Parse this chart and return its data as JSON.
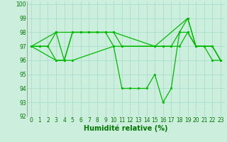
{
  "lines": [
    {
      "x": [
        0,
        1,
        2,
        3,
        4,
        5,
        6,
        7,
        8,
        9,
        10,
        11,
        12,
        13,
        14,
        15,
        16,
        17,
        18,
        19,
        20,
        21,
        22,
        23
      ],
      "y": [
        97,
        97,
        97,
        98,
        96,
        98,
        98,
        98,
        98,
        98,
        97,
        94,
        94,
        94,
        94,
        95,
        93,
        94,
        98,
        99,
        97,
        97,
        97,
        96
      ],
      "color": "#00bb00",
      "marker": "s",
      "markersize": 2.0,
      "linewidth": 0.9
    },
    {
      "x": [
        0,
        1,
        2,
        3,
        4,
        5,
        6,
        7,
        8,
        9,
        10,
        11,
        15,
        16,
        17,
        18,
        19,
        20,
        21,
        22,
        23
      ],
      "y": [
        97,
        97,
        97,
        96,
        96,
        98,
        98,
        98,
        98,
        98,
        98,
        97,
        97,
        97,
        97,
        98,
        98,
        97,
        97,
        96,
        96
      ],
      "color": "#00bb00",
      "marker": "s",
      "markersize": 2.0,
      "linewidth": 0.9
    },
    {
      "x": [
        0,
        3,
        4,
        5,
        10,
        11,
        15,
        16,
        17,
        18,
        19,
        20,
        21,
        22,
        23
      ],
      "y": [
        97,
        96,
        96,
        96,
        97,
        97,
        97,
        97,
        97,
        97,
        98,
        97,
        97,
        97,
        96
      ],
      "color": "#00bb00",
      "marker": "s",
      "markersize": 2.0,
      "linewidth": 0.9
    },
    {
      "x": [
        0,
        3,
        10,
        15,
        19,
        20,
        21,
        22,
        23
      ],
      "y": [
        97,
        98,
        98,
        97,
        99,
        97,
        97,
        97,
        96
      ],
      "color": "#00bb00",
      "marker": "s",
      "markersize": 2.0,
      "linewidth": 0.9
    }
  ],
  "xlabel": "Humidité relative (%)",
  "xlim": [
    -0.5,
    23.5
  ],
  "ylim": [
    92,
    100.2
  ],
  "yticks": [
    92,
    93,
    94,
    95,
    96,
    97,
    98,
    99,
    100
  ],
  "xticks": [
    0,
    1,
    2,
    3,
    4,
    5,
    6,
    7,
    8,
    9,
    10,
    11,
    12,
    13,
    14,
    15,
    16,
    17,
    18,
    19,
    20,
    21,
    22,
    23
  ],
  "bg_color": "#cceedd",
  "grid_color": "#aaddcc",
  "line_color": "#00bb00",
  "xlabel_color": "#007700",
  "tick_color": "#007700",
  "xlabel_fontsize": 7.0,
  "tick_fontsize": 5.5,
  "figure_width": 3.2,
  "figure_height": 2.0,
  "dpi": 100
}
